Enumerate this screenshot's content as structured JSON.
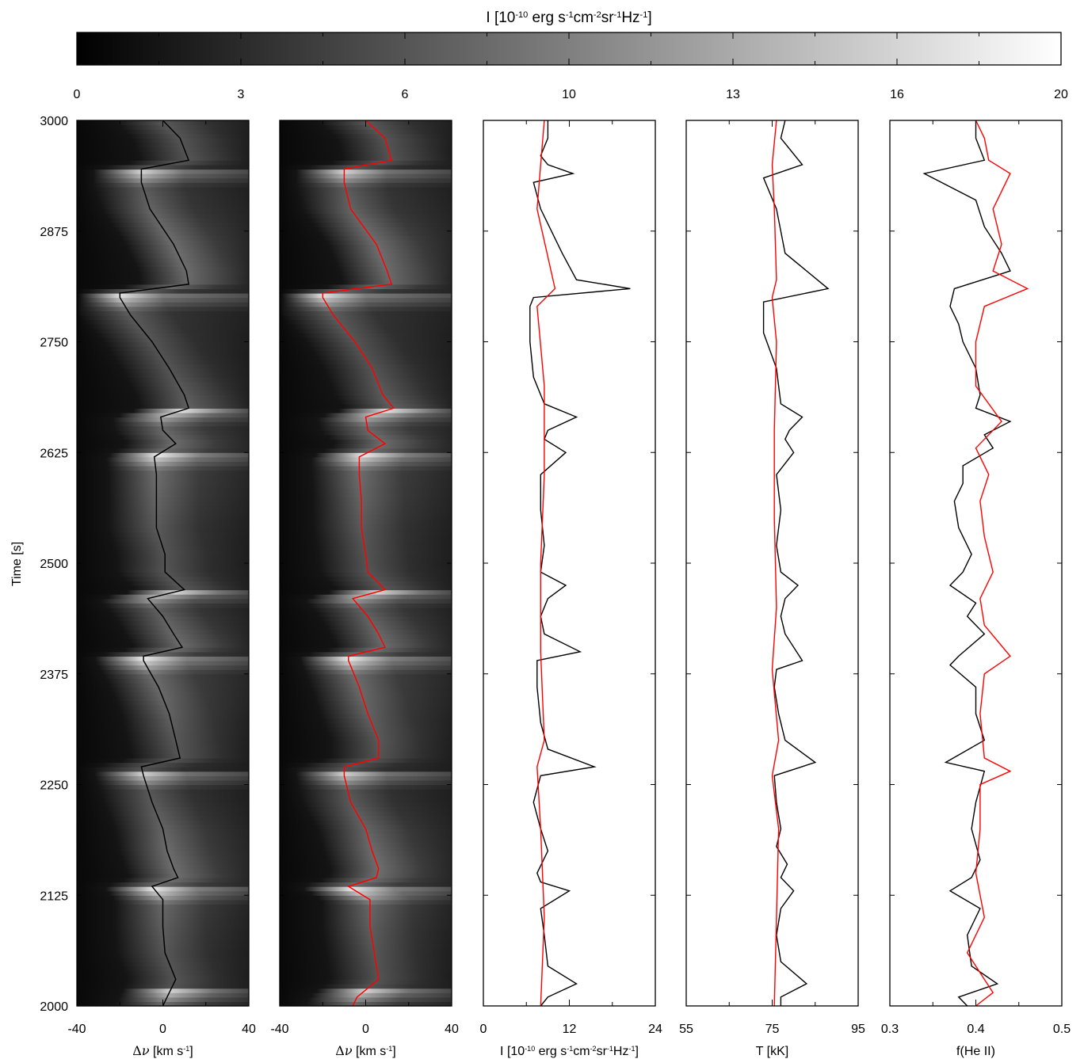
{
  "colorbar": {
    "title_parts": [
      {
        "t": "I [10",
        "s": "base"
      },
      {
        "t": "-10",
        "s": "sup"
      },
      {
        "t": " erg s",
        "s": "base"
      },
      {
        "t": "-1",
        "s": "sup"
      },
      {
        "t": "cm",
        "s": "base"
      },
      {
        "t": "-2",
        "s": "sup"
      },
      {
        "t": "sr",
        "s": "base"
      },
      {
        "t": "-1",
        "s": "sup"
      },
      {
        "t": "Hz",
        "s": "base"
      },
      {
        "t": "-1",
        "s": "sup"
      },
      {
        "t": "]",
        "s": "base"
      }
    ],
    "ticks": [
      "0",
      "3",
      "6",
      "10",
      "13",
      "16",
      "20"
    ],
    "range": [
      0,
      20
    ],
    "colormap": "grayscale"
  },
  "chart_data": [
    {
      "type": "heatmap",
      "panel": "spectrum-observed",
      "ylabel": "Time [s]",
      "yticks": [
        "3000",
        "2875",
        "2750",
        "2625",
        "2500",
        "2375",
        "2250",
        "2125",
        "2000"
      ],
      "ylim": [
        2000,
        3000
      ],
      "xlabel_parts": [
        {
          "t": "Δ",
          "s": "sym"
        },
        {
          "t": "ν",
          "s": "symi"
        },
        {
          "t": " [km s",
          "s": "base"
        },
        {
          "t": "-1",
          "s": "sup"
        },
        {
          "t": "]",
          "s": "base"
        }
      ],
      "xticks": [
        "-40",
        "0",
        "40"
      ],
      "xlim": [
        -40,
        40
      ],
      "line_color": "#000000",
      "centroid": {
        "t": [
          2000,
          2010,
          2030,
          2060,
          2090,
          2120,
          2135,
          2145,
          2155,
          2175,
          2200,
          2230,
          2260,
          2270,
          2280,
          2300,
          2330,
          2360,
          2390,
          2395,
          2405,
          2420,
          2440,
          2460,
          2470,
          2490,
          2510,
          2540,
          2570,
          2600,
          2620,
          2635,
          2650,
          2665,
          2675,
          2690,
          2720,
          2750,
          2780,
          2800,
          2805,
          2815,
          2830,
          2860,
          2900,
          2930,
          2945,
          2955,
          2980,
          3000
        ],
        "v": [
          0,
          2,
          6,
          1,
          0,
          0,
          -5,
          7,
          5,
          2,
          0,
          -5,
          -9,
          -10,
          8,
          6,
          3,
          -2,
          -9,
          -9,
          9,
          5,
          0,
          -7,
          10,
          1,
          1,
          -3,
          -3,
          -3,
          -4,
          6,
          0,
          -1,
          12,
          10,
          3,
          -5,
          -15,
          -20,
          -20,
          12,
          11,
          5,
          -6,
          -10,
          -10,
          12,
          8,
          0
        ]
      }
    },
    {
      "type": "heatmap",
      "panel": "spectrum-model",
      "xlabel_parts": [
        {
          "t": "Δ",
          "s": "sym"
        },
        {
          "t": "ν",
          "s": "symi"
        },
        {
          "t": " [km s",
          "s": "base"
        },
        {
          "t": "-1",
          "s": "sup"
        },
        {
          "t": "]",
          "s": "base"
        }
      ],
      "xticks": [
        "-40",
        "0",
        "40"
      ],
      "xlim": [
        -40,
        40
      ],
      "ylim": [
        2000,
        3000
      ],
      "line_color": "#ff0000",
      "centroid": {
        "t": [
          2000,
          2010,
          2030,
          2060,
          2090,
          2120,
          2135,
          2145,
          2155,
          2175,
          2200,
          2230,
          2260,
          2270,
          2280,
          2300,
          2330,
          2360,
          2390,
          2395,
          2405,
          2420,
          2440,
          2460,
          2470,
          2490,
          2510,
          2540,
          2570,
          2600,
          2620,
          2635,
          2650,
          2665,
          2675,
          2690,
          2720,
          2750,
          2780,
          2800,
          2805,
          2815,
          2830,
          2860,
          2900,
          2930,
          2945,
          2955,
          2980,
          3000
        ],
        "v": [
          -6,
          -4,
          6,
          4,
          2,
          2,
          -8,
          5,
          6,
          3,
          0,
          -7,
          -10,
          -10,
          6,
          6,
          1,
          -3,
          -8,
          -8,
          9,
          6,
          1,
          -6,
          9,
          1,
          0,
          -2,
          -2,
          -3,
          -3,
          9,
          1,
          0,
          13,
          8,
          3,
          -5,
          -15,
          -20,
          -20,
          12,
          10,
          5,
          -7,
          -10,
          -10,
          12,
          9,
          0
        ]
      }
    },
    {
      "type": "line",
      "panel": "intensity",
      "xlabel_parts": [
        {
          "t": "I  [10",
          "s": "base"
        },
        {
          "t": "-10",
          "s": "sup"
        },
        {
          "t": " erg s",
          "s": "base"
        },
        {
          "t": "-1",
          "s": "sup"
        },
        {
          "t": "cm",
          "s": "base"
        },
        {
          "t": "-2",
          "s": "sup"
        },
        {
          "t": "sr",
          "s": "base"
        },
        {
          "t": "-1",
          "s": "sup"
        },
        {
          "t": "Hz",
          "s": "base"
        },
        {
          "t": "-1",
          "s": "sup"
        },
        {
          "t": "]",
          "s": "base"
        }
      ],
      "xticks": [
        "0",
        "12",
        "24"
      ],
      "xlim": [
        0,
        24
      ],
      "ylim": [
        2000,
        3000
      ],
      "series": [
        {
          "color": "#000000",
          "t": [
            2000,
            2010,
            2025,
            2045,
            2080,
            2110,
            2130,
            2140,
            2150,
            2175,
            2200,
            2230,
            2260,
            2270,
            2290,
            2320,
            2360,
            2390,
            2400,
            2420,
            2440,
            2460,
            2475,
            2490,
            2520,
            2560,
            2600,
            2625,
            2640,
            2650,
            2665,
            2680,
            2710,
            2750,
            2790,
            2800,
            2810,
            2820,
            2850,
            2900,
            2930,
            2940,
            2950,
            2960,
            2980,
            3000
          ],
          "x": [
            8,
            9,
            13,
            9,
            8.5,
            8,
            12,
            8,
            7.5,
            9,
            8,
            7,
            8,
            15.5,
            9,
            8,
            7.5,
            7.5,
            13.5,
            8.5,
            8,
            9,
            11.5,
            8,
            8.5,
            8,
            8,
            11.5,
            8.5,
            9,
            13,
            8.5,
            7,
            6.5,
            6.5,
            7,
            20.5,
            13,
            11,
            8,
            7,
            12.5,
            9,
            8,
            9,
            9
          ]
        },
        {
          "color": "#ff0000",
          "t": [
            2000,
            2100,
            2200,
            2270,
            2300,
            2400,
            2500,
            2600,
            2700,
            2790,
            2810,
            2900,
            2950,
            3000
          ],
          "x": [
            8,
            8.5,
            8,
            7.5,
            8.5,
            8,
            8,
            8.5,
            8.5,
            7.5,
            10,
            7.5,
            8,
            8.5
          ]
        }
      ]
    },
    {
      "type": "line",
      "panel": "temperature",
      "xlabel": "T [kK]",
      "xticks": [
        "55",
        "75",
        "95"
      ],
      "xlim": [
        55,
        95
      ],
      "ylim": [
        2000,
        3000
      ],
      "series": [
        {
          "color": "#000000",
          "t": [
            2000,
            2010,
            2025,
            2050,
            2080,
            2110,
            2130,
            2145,
            2160,
            2180,
            2200,
            2230,
            2260,
            2275,
            2300,
            2330,
            2360,
            2380,
            2390,
            2420,
            2440,
            2460,
            2475,
            2490,
            2520,
            2560,
            2600,
            2625,
            2640,
            2650,
            2665,
            2680,
            2720,
            2760,
            2795,
            2810,
            2850,
            2900,
            2935,
            2950,
            2980,
            3000
          ],
          "x": [
            77,
            77,
            83,
            77,
            76,
            77,
            80,
            77,
            78.5,
            76,
            77,
            76,
            75.5,
            85,
            78,
            76.5,
            75.5,
            76,
            82,
            78,
            77,
            78,
            81,
            77,
            76,
            77,
            76,
            80,
            78,
            79,
            82,
            77,
            76,
            73,
            73,
            88,
            78,
            76,
            73,
            82,
            77,
            78
          ]
        },
        {
          "color": "#ff0000",
          "t": [
            2000,
            2100,
            2200,
            2260,
            2300,
            2380,
            2450,
            2550,
            2650,
            2750,
            2800,
            2820,
            2900,
            2950,
            3000
          ],
          "x": [
            75.5,
            76,
            76.5,
            75,
            76.5,
            75,
            76,
            75.5,
            75.5,
            76,
            75,
            76,
            75.5,
            75,
            76
          ]
        }
      ]
    },
    {
      "type": "line",
      "panel": "helium-fraction",
      "xlabel": "f(He II)",
      "xticks": [
        "0.3",
        "0.4",
        "0.5"
      ],
      "xlim": [
        0.3,
        0.5
      ],
      "ylim": [
        2000,
        3000
      ],
      "series": [
        {
          "color": "#000000",
          "t": [
            2000,
            2010,
            2025,
            2045,
            2080,
            2110,
            2130,
            2145,
            2165,
            2200,
            2230,
            2265,
            2275,
            2300,
            2330,
            2360,
            2385,
            2395,
            2420,
            2440,
            2455,
            2475,
            2490,
            2510,
            2540,
            2570,
            2590,
            2610,
            2630,
            2645,
            2660,
            2675,
            2690,
            2720,
            2750,
            2770,
            2790,
            2810,
            2830,
            2850,
            2880,
            2910,
            2940,
            2955,
            2980,
            3000
          ],
          "x": [
            0.39,
            0.38,
            0.425,
            0.395,
            0.39,
            0.405,
            0.37,
            0.395,
            0.405,
            0.395,
            0.4,
            0.41,
            0.365,
            0.41,
            0.4,
            0.4,
            0.37,
            0.38,
            0.41,
            0.39,
            0.4,
            0.37,
            0.385,
            0.395,
            0.38,
            0.375,
            0.385,
            0.385,
            0.42,
            0.41,
            0.44,
            0.4,
            0.405,
            0.4,
            0.385,
            0.38,
            0.37,
            0.375,
            0.44,
            0.43,
            0.41,
            0.4,
            0.34,
            0.41,
            0.4,
            0.4
          ]
        },
        {
          "color": "#ff0000",
          "t": [
            2000,
            2015,
            2030,
            2060,
            2100,
            2150,
            2200,
            2250,
            2265,
            2280,
            2330,
            2375,
            2395,
            2430,
            2460,
            2490,
            2530,
            2570,
            2600,
            2630,
            2660,
            2700,
            2750,
            2790,
            2810,
            2830,
            2860,
            2900,
            2940,
            2955,
            2980,
            3000
          ],
          "x": [
            0.4,
            0.42,
            0.41,
            0.39,
            0.41,
            0.4,
            0.405,
            0.405,
            0.44,
            0.41,
            0.405,
            0.41,
            0.44,
            0.41,
            0.405,
            0.42,
            0.41,
            0.405,
            0.415,
            0.4,
            0.43,
            0.4,
            0.4,
            0.41,
            0.46,
            0.42,
            0.43,
            0.42,
            0.44,
            0.415,
            0.41,
            0.4
          ]
        }
      ]
    }
  ]
}
